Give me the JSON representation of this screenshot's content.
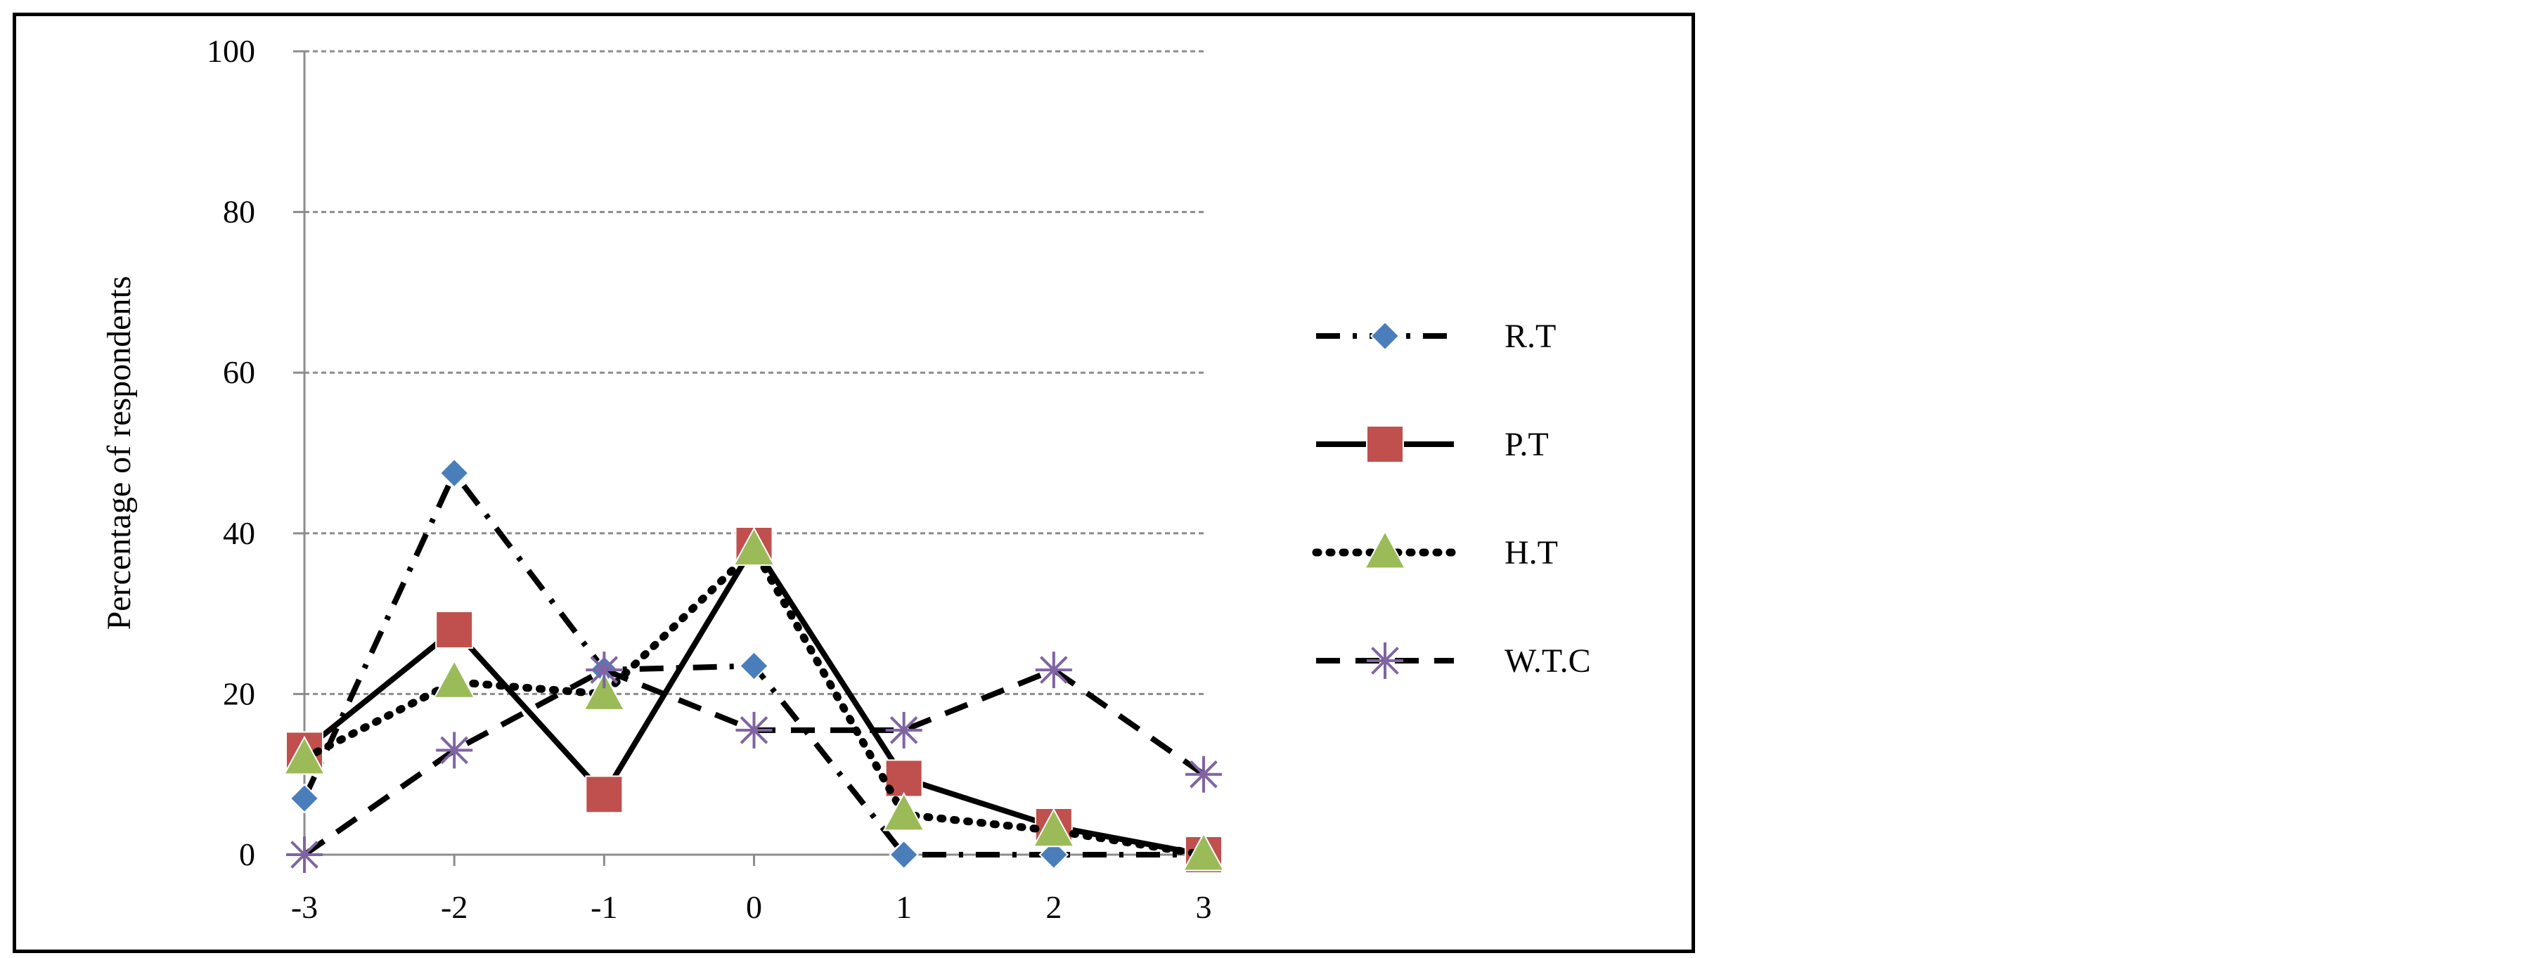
{
  "chart_data": {
    "type": "line",
    "title": "",
    "xlabel": "",
    "ylabel": "Percentage of respondents",
    "x": [
      -3,
      -2,
      -1,
      0,
      1,
      2,
      3
    ],
    "x_tick_labels": [
      "-3",
      "-2",
      "-1",
      "0",
      "1",
      "2",
      "3"
    ],
    "ylim": [
      0,
      100
    ],
    "y_ticks": [
      0,
      20,
      40,
      60,
      80,
      100
    ],
    "y_tick_labels": [
      "0",
      "20",
      "40",
      "60",
      "80",
      "100"
    ],
    "grid": "horizontal dashed",
    "legend_placement": "right",
    "series": [
      {
        "name": "R.T",
        "values": [
          7,
          47.5,
          23,
          23.5,
          0,
          0,
          0
        ],
        "color": "#4a7ebb",
        "marker": "diamond",
        "line": "dash-dot"
      },
      {
        "name": "P.T",
        "values": [
          13,
          28,
          7.5,
          38.5,
          9.5,
          3.5,
          0
        ],
        "color": "#c0504d",
        "marker": "square",
        "line": "solid"
      },
      {
        "name": "H.T",
        "values": [
          12,
          21.5,
          20,
          38,
          5,
          3,
          0
        ],
        "color": "#9bbb59",
        "marker": "triangle",
        "line": "dotted"
      },
      {
        "name": "W.T.C",
        "values": [
          0,
          13,
          23,
          15.5,
          15.5,
          23,
          10
        ],
        "color": "#8064a2",
        "marker": "star",
        "line": "dashed"
      }
    ]
  }
}
